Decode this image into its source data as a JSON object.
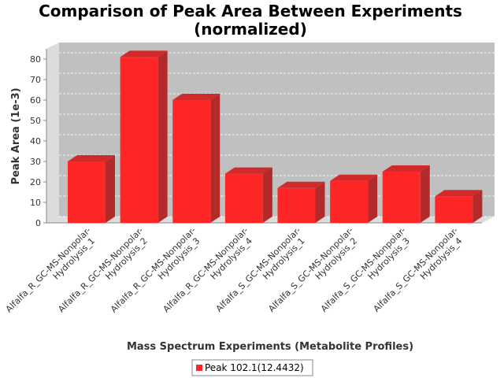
{
  "chart_data": {
    "type": "bar",
    "title_lines": [
      "Comparison of Peak Area Between Experiments",
      "(normalized)"
    ],
    "xlabel": "Mass Spectrum Experiments (Metabolite Profiles)",
    "ylabel": "Peak Area (1e-3)",
    "ylim": [
      0,
      85
    ],
    "yticks": [
      0,
      10,
      20,
      30,
      40,
      50,
      60,
      70,
      80
    ],
    "grid": true,
    "categories": [
      [
        "Alfalfa_R_GC-MS-Nonpolar-",
        "Hydrolysis_1"
      ],
      [
        "Alfalfa_R_GC-MS-Nonpolar-",
        "Hydrolysis_2"
      ],
      [
        "Alfalfa_R_GC-MS-Nonpolar-",
        "Hydrolysis_3"
      ],
      [
        "Alfalfa_R_GC-MS-Nonpolar-",
        "Hydrolysis_4"
      ],
      [
        "Alfalfa_S_GC-MS-Nonpolar-",
        "Hydrolysis_1"
      ],
      [
        "Alfalfa_S_GC-MS-Nonpolar-",
        "Hydrolysis_2"
      ],
      [
        "Alfalfa_S_GC-MS-Nonpolar-",
        "Hydrolysis_3"
      ],
      [
        "Alfalfa_S_GC-MS-Nonpolar-",
        "Hydrolysis_4"
      ]
    ],
    "series": [
      {
        "name": "Peak 102.1(12.4432)",
        "values": [
          30,
          81,
          60,
          24,
          17,
          20.5,
          25,
          13
        ]
      }
    ],
    "legend_position": "bottom",
    "colors": {
      "bar": "#ff2626",
      "bar_side": "#b22a2a",
      "bar_top": "#d02a2a",
      "plot_bg": "#c0c0c0",
      "plot_side": "#dcdcdc"
    }
  }
}
